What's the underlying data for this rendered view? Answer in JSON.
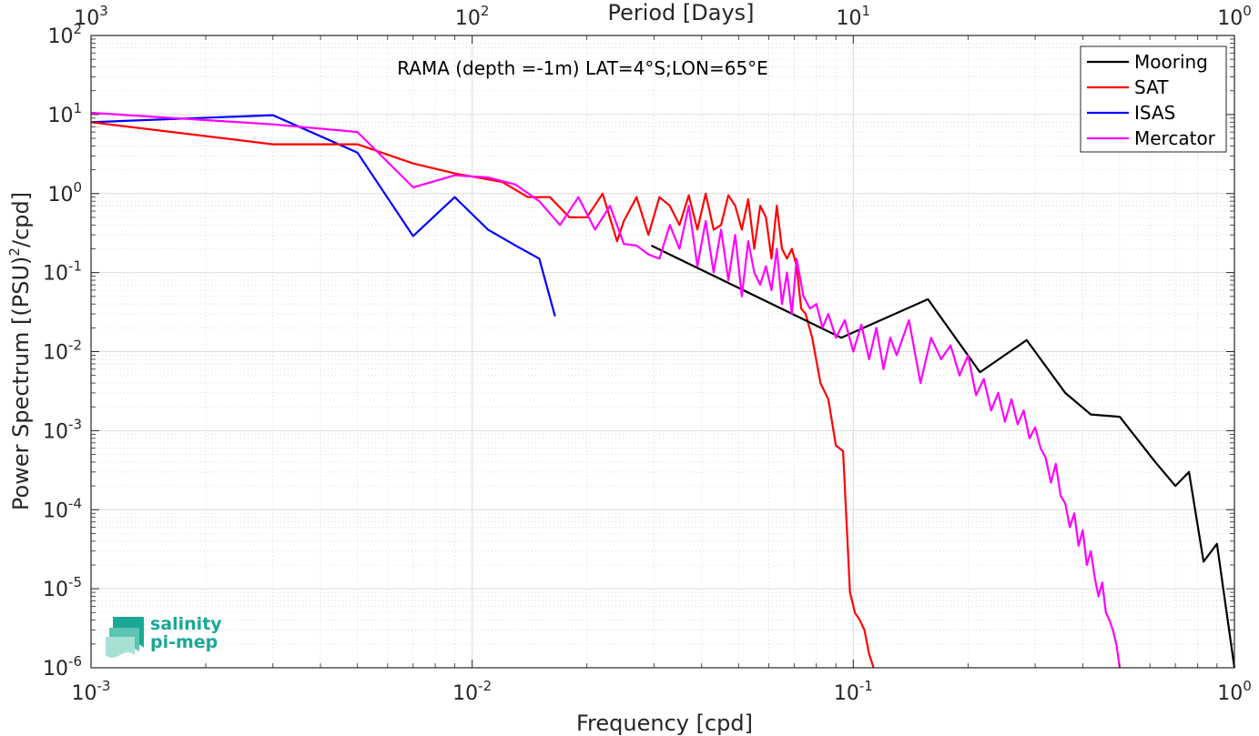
{
  "chart_data": {
    "type": "line",
    "title": "",
    "annotation": "RAMA (depth =-1m) LAT=4°S;LON=65°E",
    "xlabel": "Frequency [cpd]",
    "ylabel_prefix": "Power Spectrum [(PSU)",
    "ylabel_sup": "2",
    "ylabel_suffix": "/cpd]",
    "top_xlabel": "Period [Days]",
    "x_scale": "log",
    "y_scale": "log",
    "xlim": [
      0.001,
      1
    ],
    "ylim": [
      1e-06,
      100
    ],
    "grid": true,
    "minor_grid": true,
    "legend_position": "top-right",
    "x_ticks": [
      {
        "v": 0.001,
        "base": "10",
        "exp": "-3"
      },
      {
        "v": 0.01,
        "base": "10",
        "exp": "-2"
      },
      {
        "v": 0.1,
        "base": "10",
        "exp": "-1"
      },
      {
        "v": 1,
        "base": "10",
        "exp": "0"
      }
    ],
    "top_ticks": [
      {
        "v": 0.001,
        "base": "10",
        "exp": "3"
      },
      {
        "v": 0.01,
        "base": "10",
        "exp": "2"
      },
      {
        "v": 0.1,
        "base": "10",
        "exp": "1"
      },
      {
        "v": 1,
        "base": "10",
        "exp": "0"
      }
    ],
    "y_ticks": [
      {
        "v": 100,
        "base": "10",
        "exp": "2"
      },
      {
        "v": 10,
        "base": "10",
        "exp": "1"
      },
      {
        "v": 1,
        "base": "10",
        "exp": "0"
      },
      {
        "v": 0.1,
        "base": "10",
        "exp": "-1"
      },
      {
        "v": 0.01,
        "base": "10",
        "exp": "-2"
      },
      {
        "v": 0.001,
        "base": "10",
        "exp": "-3"
      },
      {
        "v": 0.0001,
        "base": "10",
        "exp": "-4"
      },
      {
        "v": 1e-05,
        "base": "10",
        "exp": "-5"
      },
      {
        "v": 1e-06,
        "base": "10",
        "exp": "-6"
      }
    ],
    "series": [
      {
        "name": "Mooring",
        "color": "#000000",
        "x": [
          0.0295,
          0.093,
          0.157,
          0.215,
          0.285,
          0.36,
          0.42,
          0.5,
          0.62,
          0.7,
          0.76,
          0.83,
          0.9,
          1.0
        ],
        "y": [
          0.22,
          0.015,
          0.046,
          0.0055,
          0.014,
          0.003,
          0.0016,
          0.0015,
          0.0004,
          0.0002,
          0.0003,
          2.2e-05,
          3.7e-05,
          1e-06
        ]
      },
      {
        "name": "SAT",
        "color": "#ff0000",
        "x": [
          0.001,
          0.003,
          0.005,
          0.007,
          0.009,
          0.012,
          0.014,
          0.016,
          0.018,
          0.02,
          0.022,
          0.024,
          0.025,
          0.027,
          0.029,
          0.031,
          0.033,
          0.035,
          0.037,
          0.039,
          0.041,
          0.043,
          0.045,
          0.047,
          0.049,
          0.051,
          0.053,
          0.055,
          0.057,
          0.059,
          0.061,
          0.063,
          0.065,
          0.067,
          0.069,
          0.071,
          0.073,
          0.075,
          0.078,
          0.082,
          0.086,
          0.09,
          0.094,
          0.098,
          0.101,
          0.104,
          0.107,
          0.11,
          0.113
        ],
        "y": [
          8.0,
          4.2,
          4.2,
          2.4,
          1.8,
          1.4,
          0.9,
          0.9,
          0.5,
          0.5,
          1.0,
          0.25,
          0.45,
          0.9,
          0.3,
          0.9,
          0.7,
          0.4,
          0.95,
          0.35,
          1.0,
          0.35,
          0.4,
          0.95,
          0.7,
          0.35,
          0.85,
          0.2,
          0.7,
          0.5,
          0.15,
          0.7,
          0.2,
          0.15,
          0.2,
          0.12,
          0.035,
          0.03,
          0.015,
          0.004,
          0.0025,
          0.00065,
          0.00055,
          9e-06,
          5e-06,
          4e-06,
          3e-06,
          1.5e-06,
          1e-06
        ]
      },
      {
        "name": "ISAS",
        "color": "#0000ff",
        "x": [
          0.001,
          0.003,
          0.005,
          0.007,
          0.009,
          0.011,
          0.013,
          0.015,
          0.0165
        ],
        "y": [
          8.0,
          9.8,
          3.3,
          0.29,
          0.9,
          0.35,
          0.22,
          0.15,
          0.028
        ]
      },
      {
        "name": "Mercator",
        "color": "#ff00ff",
        "x": [
          0.001,
          0.003,
          0.005,
          0.007,
          0.009,
          0.011,
          0.013,
          0.015,
          0.017,
          0.019,
          0.021,
          0.023,
          0.025,
          0.027,
          0.029,
          0.031,
          0.033,
          0.035,
          0.037,
          0.039,
          0.041,
          0.043,
          0.045,
          0.047,
          0.049,
          0.051,
          0.053,
          0.055,
          0.057,
          0.059,
          0.061,
          0.063,
          0.065,
          0.067,
          0.069,
          0.071,
          0.074,
          0.077,
          0.08,
          0.083,
          0.086,
          0.09,
          0.095,
          0.1,
          0.105,
          0.11,
          0.115,
          0.12,
          0.125,
          0.13,
          0.14,
          0.15,
          0.16,
          0.17,
          0.18,
          0.19,
          0.2,
          0.21,
          0.22,
          0.23,
          0.24,
          0.25,
          0.26,
          0.27,
          0.28,
          0.29,
          0.3,
          0.31,
          0.32,
          0.33,
          0.34,
          0.35,
          0.36,
          0.37,
          0.38,
          0.39,
          0.4,
          0.41,
          0.42,
          0.43,
          0.44,
          0.45,
          0.46,
          0.47,
          0.48,
          0.49,
          0.5
        ],
        "y": [
          10.5,
          7.5,
          6.0,
          1.2,
          1.7,
          1.6,
          1.3,
          0.8,
          0.4,
          0.9,
          0.35,
          0.7,
          0.23,
          0.22,
          0.17,
          0.15,
          0.4,
          0.2,
          0.7,
          0.12,
          0.45,
          0.1,
          0.35,
          0.08,
          0.3,
          0.05,
          0.25,
          0.1,
          0.07,
          0.12,
          0.06,
          0.2,
          0.04,
          0.1,
          0.03,
          0.15,
          0.05,
          0.035,
          0.04,
          0.02,
          0.03,
          0.015,
          0.025,
          0.01,
          0.022,
          0.008,
          0.02,
          0.006,
          0.015,
          0.009,
          0.025,
          0.004,
          0.015,
          0.008,
          0.012,
          0.005,
          0.009,
          0.0028,
          0.0045,
          0.0018,
          0.003,
          0.0013,
          0.0025,
          0.0012,
          0.0018,
          0.0008,
          0.0011,
          0.0006,
          0.00045,
          0.00022,
          0.00038,
          0.00015,
          0.00012,
          6e-05,
          9e-05,
          3.5e-05,
          5.5e-05,
          2e-05,
          3e-05,
          1.4e-05,
          8e-06,
          1.2e-05,
          5e-06,
          4e-06,
          3e-06,
          2e-06,
          1e-06
        ]
      }
    ]
  },
  "logo": {
    "line1": "salinity",
    "line2": "pi-mep",
    "color": "#1aa896"
  }
}
